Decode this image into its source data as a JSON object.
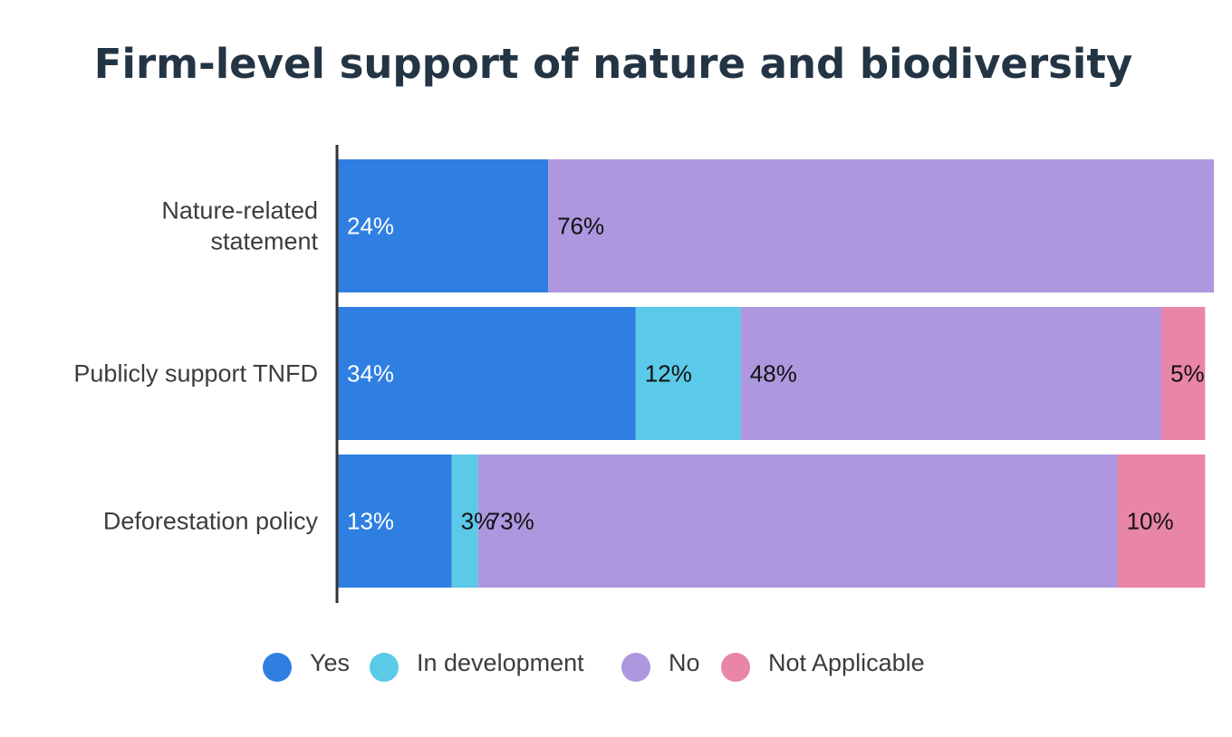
{
  "chart_data": {
    "type": "bar",
    "orientation": "horizontal",
    "stacked": true,
    "title": "Firm-level support of nature and biodiversity",
    "categories": [
      [
        "Nature-related",
        "statement"
      ],
      [
        "Publicly support TNFD"
      ],
      [
        "Deforestation policy"
      ]
    ],
    "series": [
      {
        "name": "Yes",
        "color": "#2f7fe2",
        "label_color": "#ffffff",
        "values": [
          24,
          34,
          13
        ]
      },
      {
        "name": "In development",
        "color": "#5bc9e8",
        "label_color": "#111111",
        "values": [
          0,
          12,
          3
        ]
      },
      {
        "name": "No",
        "color": "#ad97de",
        "label_color": "#111111",
        "values": [
          76,
          48,
          73
        ]
      },
      {
        "name": "Not Applicable",
        "color": "#e885a8",
        "label_color": "#111111",
        "values": [
          0,
          5,
          10
        ]
      }
    ],
    "value_suffix": "%",
    "xlim": [
      0,
      100
    ],
    "grid": false,
    "legend_position": "bottom"
  }
}
